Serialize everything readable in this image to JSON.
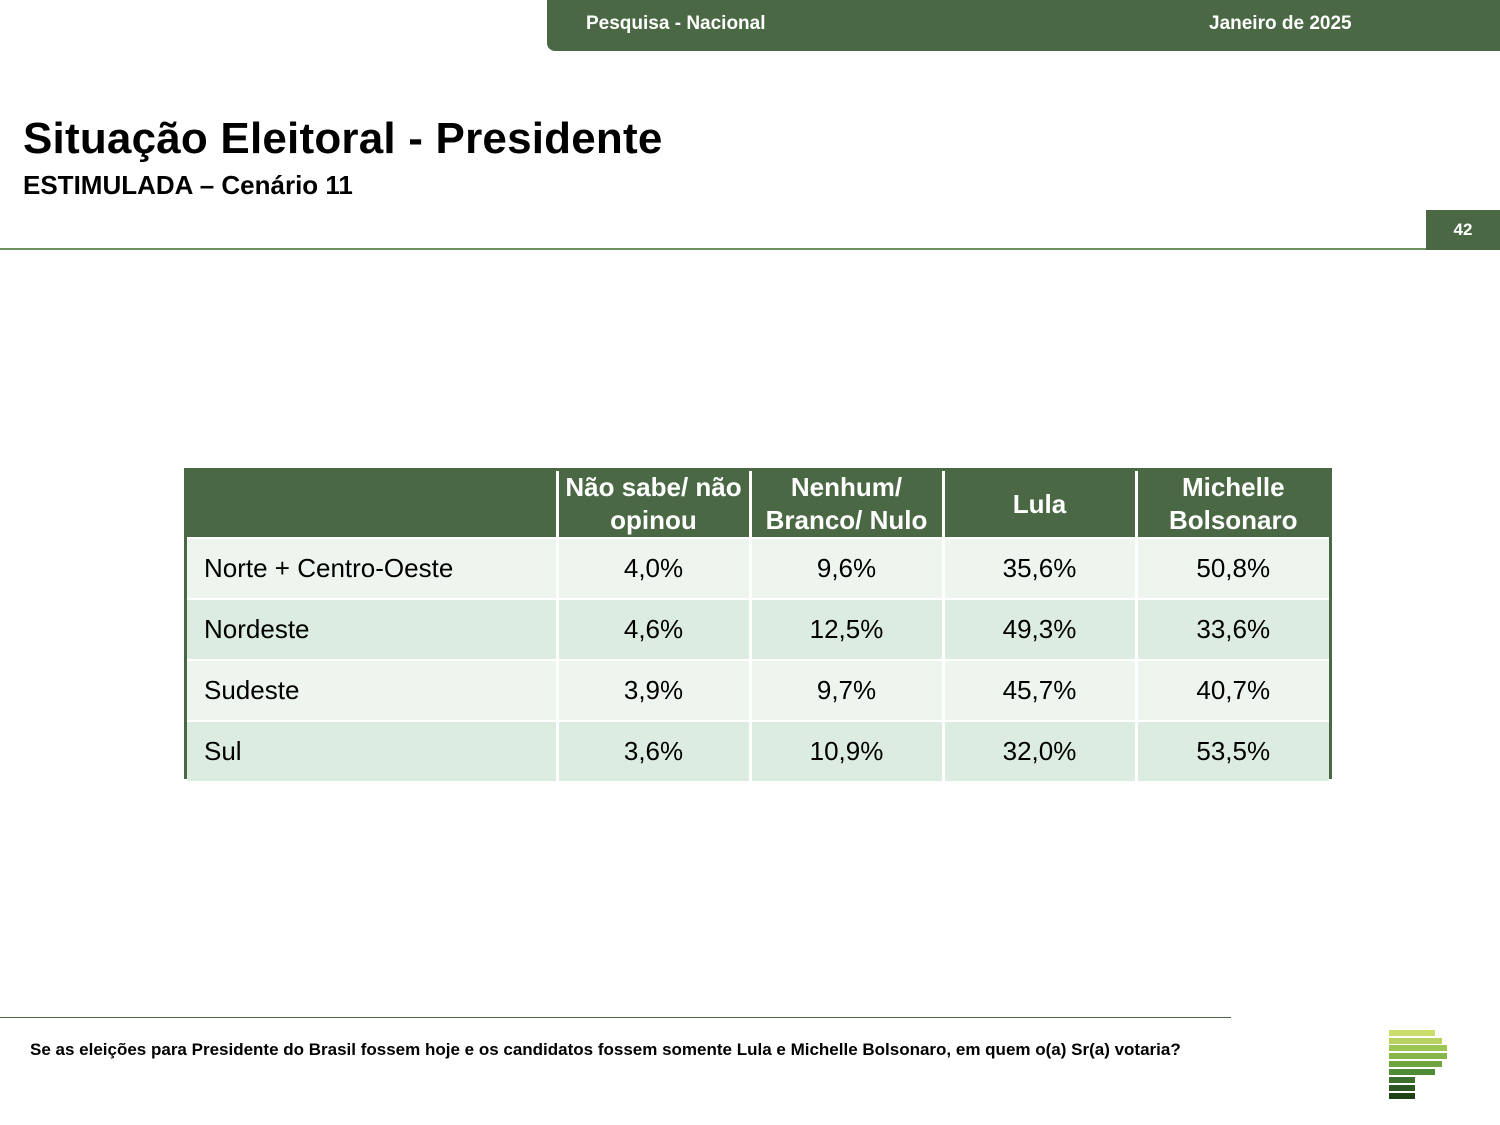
{
  "header": {
    "survey_label": "Pesquisa - Nacional",
    "date_label": "Janeiro de 2025",
    "page_number": "42"
  },
  "title": "Situação Eleitoral - Presidente",
  "subtitle": "ESTIMULADA – Cenário 11",
  "table": {
    "columns": [
      "",
      "Não sabe/ não opinou",
      "Nenhum/ Branco/ Nulo",
      "Lula",
      "Michelle Bolsonaro"
    ],
    "rows": [
      {
        "region": "Norte + Centro-Oeste",
        "nao_sabe": "4,0%",
        "nenhum": "9,6%",
        "lula": "35,6%",
        "michelle": "50,8%"
      },
      {
        "region": "Nordeste",
        "nao_sabe": "4,6%",
        "nenhum": "12,5%",
        "lula": "49,3%",
        "michelle": "33,6%"
      },
      {
        "region": "Sudeste",
        "nao_sabe": "3,9%",
        "nenhum": "9,7%",
        "lula": "45,7%",
        "michelle": "40,7%"
      },
      {
        "region": "Sul",
        "nao_sabe": "3,6%",
        "nenhum": "10,9%",
        "lula": "32,0%",
        "michelle": "53,5%"
      }
    ]
  },
  "footer": {
    "question": "Se as eleições para Presidente do Brasil fossem hoje e os candidatos fossem somente Lula e Michelle Bolsonaro, em quem o(a) Sr(a) votaria?"
  },
  "logo": {
    "icon": "stacked-bars-logo-icon"
  },
  "colors": {
    "brand_dark_green": "#4a6844",
    "row_light": "#eef5ef",
    "row_alt": "#ddece0",
    "logo_stripes": [
      "#c9dd6b",
      "#b6d35f",
      "#9dc553",
      "#86b649",
      "#6ea53f",
      "#4f8a35",
      "#3b6f2b",
      "#2c5722",
      "#1e4118"
    ]
  }
}
